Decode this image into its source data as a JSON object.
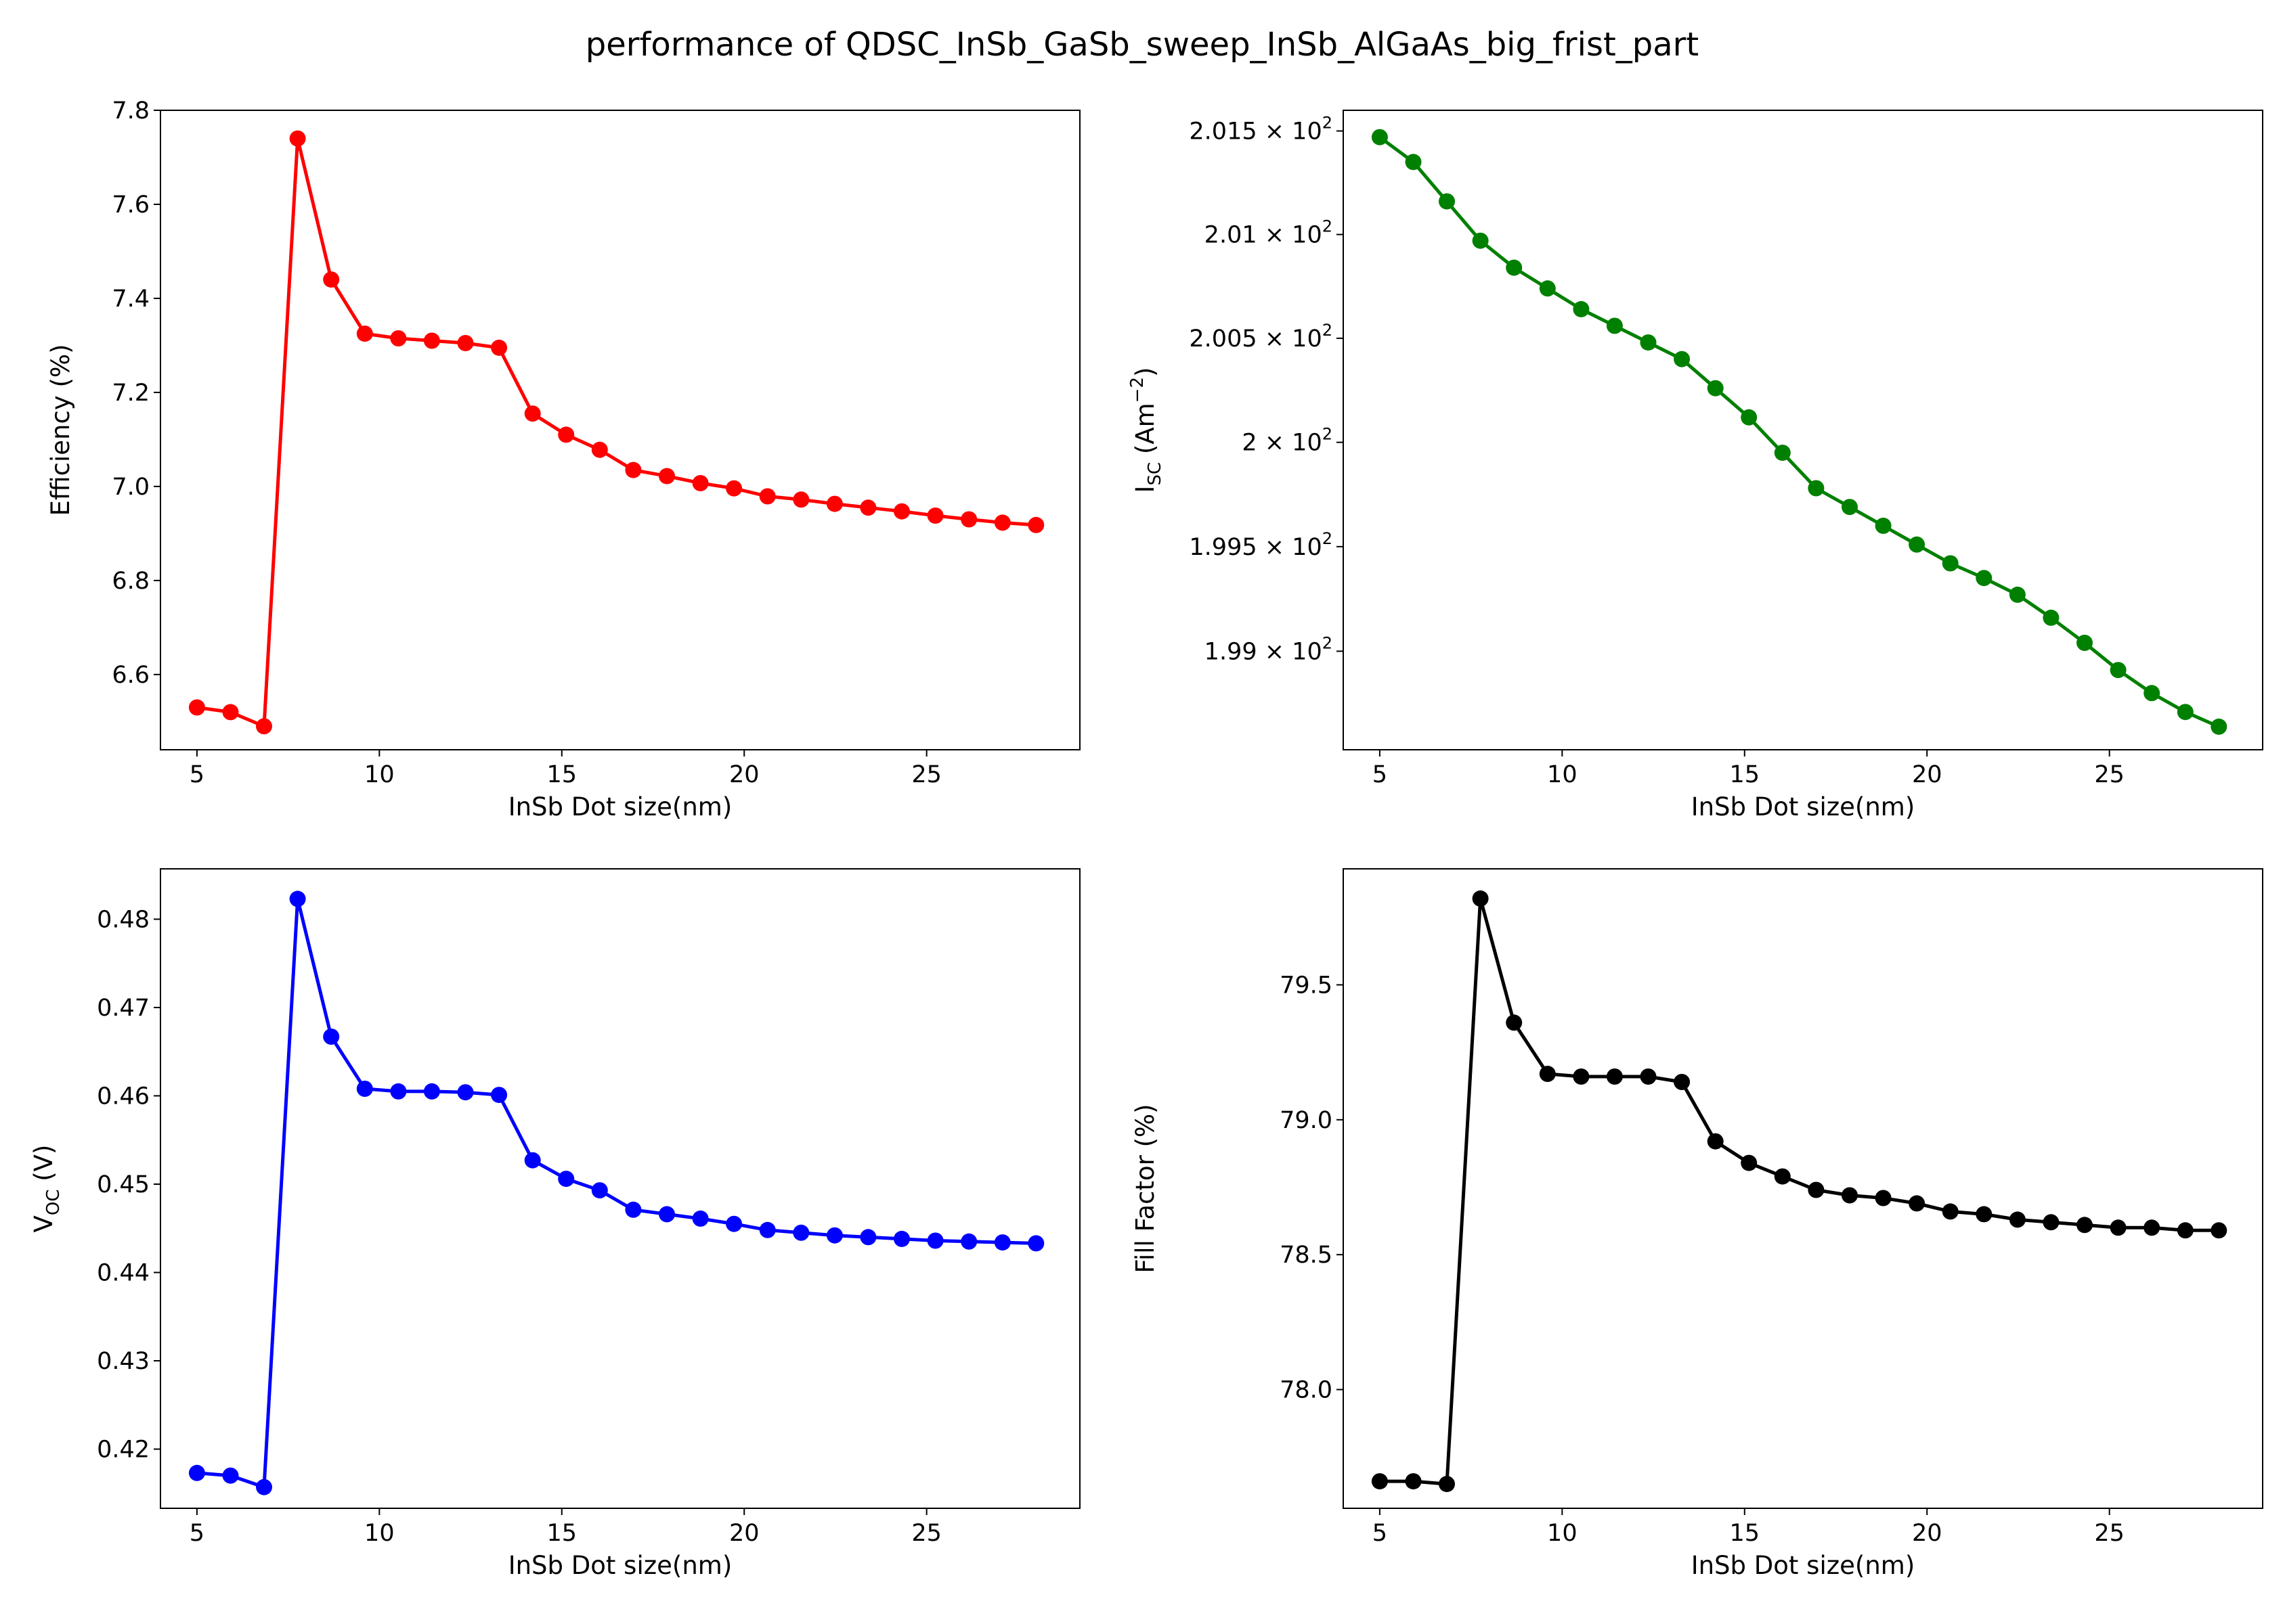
{
  "title": "performance of QDSC_InSb_GaSb_sweep_InSb_AlGaAs_big_frist_part",
  "chart_data": [
    {
      "type": "line",
      "xlabel": "InSb Dot size(nm)",
      "ylabel": "Efficiency (%)",
      "color": "#ff0000",
      "xlim": [
        4.0,
        29.2
      ],
      "ylim": [
        6.44,
        7.8
      ],
      "xticks": [
        5,
        10,
        15,
        20,
        25
      ],
      "yticks": [
        6.6,
        6.8,
        7.0,
        7.2,
        7.4,
        7.6,
        7.8
      ],
      "x": [
        5.0,
        5.92,
        6.84,
        7.76,
        8.68,
        9.6,
        10.52,
        11.44,
        12.36,
        13.28,
        14.2,
        15.12,
        16.04,
        16.96,
        17.88,
        18.8,
        19.72,
        20.64,
        21.56,
        22.48,
        23.4,
        24.32,
        25.24,
        26.16,
        27.08,
        28.0
      ],
      "y": [
        6.53,
        6.52,
        6.49,
        7.74,
        7.44,
        7.325,
        7.315,
        7.31,
        7.305,
        7.295,
        7.155,
        7.11,
        7.078,
        7.035,
        7.022,
        7.007,
        6.996,
        6.979,
        6.972,
        6.963,
        6.955,
        6.947,
        6.938,
        6.93,
        6.923,
        6.918
      ]
    },
    {
      "type": "line",
      "xlabel": "InSb Dot size(nm)",
      "ylabel_main": "I",
      "ylabel_sub": "SC",
      "ylabel_unit_pre": " (Am",
      "ylabel_unit_sup": "−2",
      "ylabel_unit_post": ")",
      "scale": "log",
      "color": "#008000",
      "xlim": [
        4.0,
        29.2
      ],
      "ylim": [
        198.53,
        201.6
      ],
      "xticks": [
        5,
        10,
        15,
        20,
        25
      ],
      "yticks": [
        {
          "value": 199.0,
          "mantissa": "1.99",
          "times": " × 10",
          "exp": "2"
        },
        {
          "value": 199.5,
          "mantissa": "1.995",
          "times": " × 10",
          "exp": "2"
        },
        {
          "value": 200.0,
          "mantissa": "2",
          "times": " × 10",
          "exp": "2"
        },
        {
          "value": 200.5,
          "mantissa": "2.005",
          "times": " × 10",
          "exp": "2"
        },
        {
          "value": 201.0,
          "mantissa": "2.01",
          "times": " × 10",
          "exp": "2"
        },
        {
          "value": 201.5,
          "mantissa": "2.015",
          "times": " × 10",
          "exp": "2"
        }
      ],
      "x": [
        5.0,
        5.92,
        6.84,
        7.76,
        8.68,
        9.6,
        10.52,
        11.44,
        12.36,
        13.28,
        14.2,
        15.12,
        16.04,
        16.96,
        17.88,
        18.8,
        19.72,
        20.64,
        21.56,
        22.48,
        23.4,
        24.32,
        25.24,
        26.16,
        27.08,
        28.0
      ],
      "y": [
        201.47,
        201.35,
        201.16,
        200.97,
        200.84,
        200.74,
        200.64,
        200.56,
        200.48,
        200.4,
        200.26,
        200.12,
        199.95,
        199.78,
        199.69,
        199.6,
        199.51,
        199.42,
        199.35,
        199.27,
        199.16,
        199.04,
        198.91,
        198.8,
        198.71,
        198.64
      ]
    },
    {
      "type": "line",
      "xlabel": "InSb Dot size(nm)",
      "ylabel_main": "V",
      "ylabel_sub": "OC",
      "ylabel_unit_pre": " (V)",
      "color": "#0000ff",
      "xlim": [
        4.0,
        29.2
      ],
      "ylim": [
        0.4133,
        0.4857
      ],
      "xticks": [
        5,
        10,
        15,
        20,
        25
      ],
      "yticks": [
        0.42,
        0.43,
        0.44,
        0.45,
        0.46,
        0.47,
        0.48
      ],
      "x": [
        5.0,
        5.92,
        6.84,
        7.76,
        8.68,
        9.6,
        10.52,
        11.44,
        12.36,
        13.28,
        14.2,
        15.12,
        16.04,
        16.96,
        17.88,
        18.8,
        19.72,
        20.64,
        21.56,
        22.48,
        23.4,
        24.32,
        25.24,
        26.16,
        27.08,
        28.0
      ],
      "y": [
        0.4173,
        0.417,
        0.4157,
        0.4823,
        0.4667,
        0.4608,
        0.4605,
        0.4605,
        0.4604,
        0.4601,
        0.4527,
        0.4506,
        0.4493,
        0.4471,
        0.4466,
        0.4461,
        0.4455,
        0.4448,
        0.4445,
        0.4442,
        0.444,
        0.4438,
        0.4436,
        0.4435,
        0.4434,
        0.4433
      ]
    },
    {
      "type": "line",
      "xlabel": "InSb Dot size(nm)",
      "ylabel": "Fill Factor (%)",
      "color": "#000000",
      "xlim": [
        4.0,
        29.2
      ],
      "ylim": [
        77.56,
        79.93
      ],
      "xticks": [
        5,
        10,
        15,
        20,
        25
      ],
      "yticks": [
        78.0,
        78.5,
        79.0,
        79.5
      ],
      "x": [
        5.0,
        5.92,
        6.84,
        7.76,
        8.68,
        9.6,
        10.52,
        11.44,
        12.36,
        13.28,
        14.2,
        15.12,
        16.04,
        16.96,
        17.88,
        18.8,
        19.72,
        20.64,
        21.56,
        22.48,
        23.4,
        24.32,
        25.24,
        26.16,
        27.08,
        28.0
      ],
      "y": [
        77.66,
        77.66,
        77.65,
        79.82,
        79.36,
        79.17,
        79.16,
        79.16,
        79.16,
        79.14,
        78.92,
        78.84,
        78.79,
        78.74,
        78.72,
        78.71,
        78.69,
        78.66,
        78.65,
        78.63,
        78.62,
        78.61,
        78.6,
        78.6,
        78.59,
        78.59
      ]
    }
  ]
}
